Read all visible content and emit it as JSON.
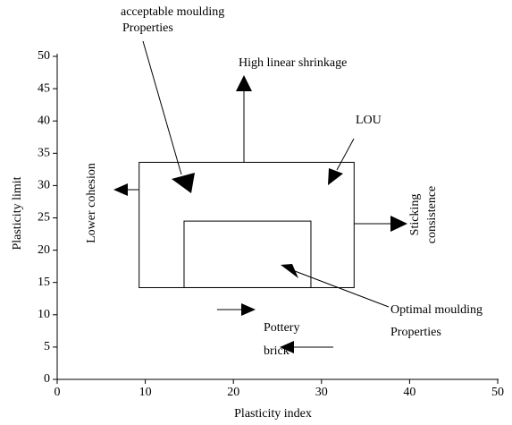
{
  "chart_data": {
    "type": "region",
    "xlabel": "Plasticity index",
    "ylabel": "Plasticity limit",
    "xlim": [
      0,
      50
    ],
    "xticks": [
      0,
      10,
      20,
      30,
      40,
      50
    ],
    "ylim": [
      0,
      50
    ],
    "yticks": [
      0,
      5,
      10,
      15,
      20,
      25,
      30,
      35,
      40,
      45,
      50
    ],
    "regions": [
      {
        "x": [
          9.3,
          33.7
        ],
        "y": [
          14.2,
          33.6
        ]
      },
      {
        "x": [
          14.4,
          28.8
        ],
        "y": [
          14.2,
          24.5
        ]
      }
    ],
    "annotations": [
      "acceptable  moulding",
      "Properties",
      "High linear shrinkage",
      "LOU",
      "Lower cohesion",
      "Sticking",
      "consistence",
      "Optimal moulding",
      "Properties",
      "Pottery",
      "brick"
    ]
  }
}
